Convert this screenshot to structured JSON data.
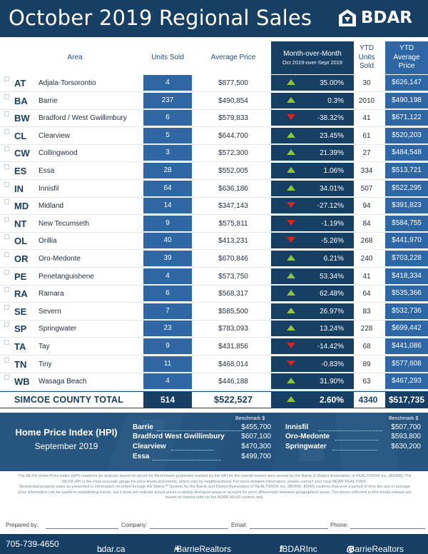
{
  "header": {
    "title": "October 2019 Regional Sales",
    "brand": "BDAR",
    "logo_icon": "bdar-house-logo-icon",
    "bg": "#173e63"
  },
  "columns": {
    "area": "Area",
    "units_sold": "Units Sold",
    "average_price": "Average Price",
    "mom_title": "Month-over-Month",
    "mom_sub": "Oct 2019-over-Sept 2019",
    "ytd_units": [
      "YTD",
      "Units",
      "Sold"
    ],
    "ytd_avg": [
      "YTD",
      "Average",
      "Price"
    ]
  },
  "rows": [
    {
      "code": "AT",
      "name": "Adjala-Torsorontio",
      "units": "4",
      "avg": "$877,500",
      "dir": "up",
      "mom": "35.00%",
      "ytd": "30",
      "ytd_avg": "$626,147"
    },
    {
      "code": "BA",
      "name": "Barrie",
      "units": "237",
      "avg": "$490,854",
      "dir": "up",
      "mom": "0.3%",
      "ytd": "2010",
      "ytd_avg": "$490,198"
    },
    {
      "code": "BW",
      "name": "Bradford / West Gwillimbury",
      "units": "6",
      "avg": "$579,833",
      "dir": "down",
      "mom": "-38.32%",
      "ytd": "41",
      "ytd_avg": "$671,122"
    },
    {
      "code": "CL",
      "name": "Clearview",
      "units": "5",
      "avg": "$644,700",
      "dir": "up",
      "mom": "23.45%",
      "ytd": "61",
      "ytd_avg": "$520,203"
    },
    {
      "code": "CW",
      "name": "Collingwood",
      "units": "3",
      "avg": "$572,300",
      "dir": "up",
      "mom": "21.39%",
      "ytd": "27",
      "ytd_avg": "$484,548"
    },
    {
      "code": "ES",
      "name": "Essa",
      "units": "28",
      "avg": "$552,005",
      "dir": "up",
      "mom": "1.06%",
      "ytd": "334",
      "ytd_avg": "$513,721"
    },
    {
      "code": "IN",
      "name": "Innisfil",
      "units": "64",
      "avg": "$636,186",
      "dir": "up",
      "mom": "34.01%",
      "ytd": "507",
      "ytd_avg": "$522,295"
    },
    {
      "code": "MD",
      "name": "Midland",
      "units": "14",
      "avg": "$347,143",
      "dir": "down",
      "mom": "-27.12%",
      "ytd": "94",
      "ytd_avg": "$391,823"
    },
    {
      "code": "NT",
      "name": "New Tecumseth",
      "units": "9",
      "avg": "$575,811",
      "dir": "down",
      "mom": "-1.19%",
      "ytd": "84",
      "ytd_avg": "$584,755"
    },
    {
      "code": "OL",
      "name": "Orillia",
      "units": "40",
      "avg": "$413,231",
      "dir": "down",
      "mom": "-5.26%",
      "ytd": "268",
      "ytd_avg": "$441,970"
    },
    {
      "code": "OR",
      "name": "Oro-Medonte",
      "units": "39",
      "avg": "$670,846",
      "dir": "up",
      "mom": "6.21%",
      "ytd": "240",
      "ytd_avg": "$703,228"
    },
    {
      "code": "PE",
      "name": "Penetanguishene",
      "units": "4",
      "avg": "$573,750",
      "dir": "up",
      "mom": "53.34%",
      "ytd": "41",
      "ytd_avg": "$418,334"
    },
    {
      "code": "RA",
      "name": "Ramara",
      "units": "6",
      "avg": "$568,317",
      "dir": "up",
      "mom": "62.48%",
      "ytd": "64",
      "ytd_avg": "$535,366"
    },
    {
      "code": "SE",
      "name": "Severn",
      "units": "7",
      "avg": "$585,500",
      "dir": "up",
      "mom": "26.97%",
      "ytd": "83",
      "ytd_avg": "$532,736"
    },
    {
      "code": "SP",
      "name": "Springwater",
      "units": "23",
      "avg": "$783,093",
      "dir": "up",
      "mom": "13.24%",
      "ytd": "228",
      "ytd_avg": "$699,442"
    },
    {
      "code": "TA",
      "name": "Tay",
      "units": "9",
      "avg": "$431,856",
      "dir": "down",
      "mom": "-14.42%",
      "ytd": "68",
      "ytd_avg": "$441,086"
    },
    {
      "code": "TN",
      "name": "Tiny",
      "units": "11",
      "avg": "$468,014",
      "dir": "down",
      "mom": "-0.83%",
      "ytd": "89",
      "ytd_avg": "$577,608"
    },
    {
      "code": "WB",
      "name": "Wasaga Beach",
      "units": "4",
      "avg": "$446,188",
      "dir": "up",
      "mom": "31.90%",
      "ytd": "63",
      "ytd_avg": "$467,293"
    }
  ],
  "total": {
    "name": "SIMCOE COUNTY TOTAL",
    "units": "514",
    "avg": "$522,527",
    "dir": "up",
    "mom": "2.60%",
    "ytd": "4340",
    "ytd_avg": "$517,735"
  },
  "hpi": {
    "title": "Home Price Index (HPI)",
    "subtitle": "September 2019",
    "bench_label": "Benchmark $",
    "left": [
      {
        "name": "Barrie",
        "value": "$455,700"
      },
      {
        "name": "Bradford West Gwillimbury",
        "value": "$607,100"
      },
      {
        "name": "Clearview",
        "value": "$470,300"
      },
      {
        "name": "Essa",
        "value": "$499,700"
      }
    ],
    "right": [
      {
        "name": "Innisfil",
        "value": "$507,700"
      },
      {
        "name": "Oro-Medonte",
        "value": "$593,800"
      },
      {
        "name": "Springwater",
        "value": "$630,200"
      }
    ]
  },
  "disclaimer": {
    "p1": "The MLS® Home Price Index (HPI) conducts an analysis based on prices for Benchmark properties tracked by the HPI for the overall market area served by the Barrie & District Association of REALTORS® Inc. (BDAR). The MLS® HPI is the most accurate gauge for price levels and trends, which vary by neighbourhood. For more detailed information, please contact your local BDAR REALTOR®.",
    "p2": "Residential property sales as presented is information recorded through the Matrix™ System for the Barrie and District Association of REALTORS® Inc. (BDAR). BDAR cautions that over a period of time the use of average price information can be useful in establishing trends, but it does not indicate actual prices in widely divergent areas or account for price differentials between geographical areas. The prices reflected in this media release are based on homes sold via the BDAR MLS® system only."
  },
  "prepared": {
    "prepared_by": "Prepared by:",
    "company": "Company:",
    "email": "Email:",
    "phone": "Phone:"
  },
  "footer": {
    "phone": "705-739-4650",
    "website": "bdar.ca",
    "twitter": "/BarrieRealtors",
    "facebook": "/BDARInc",
    "instagram": "/BarrieRealtors"
  },
  "colors": {
    "navy": "#173e63",
    "blue": "#2e67a3",
    "up_arrow": "#8cc63f",
    "down_arrow": "#d7261e"
  }
}
